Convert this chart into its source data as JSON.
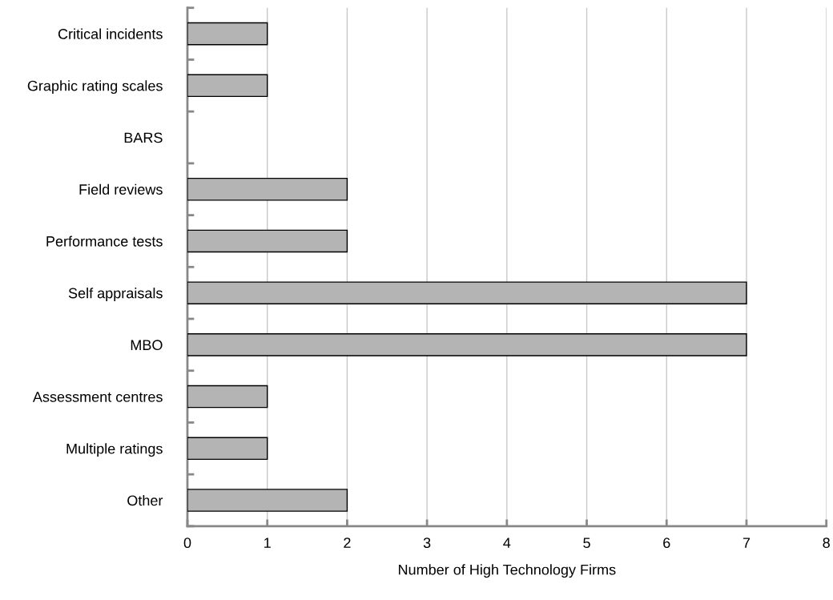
{
  "chart_data": {
    "type": "bar",
    "orientation": "horizontal",
    "xlabel": "Number of High Technology Firms",
    "categories": [
      "Critical incidents",
      "Graphic rating scales",
      "BARS",
      "Field reviews",
      "Performance tests",
      "Self appraisals",
      "MBO",
      "Assessment centres",
      "Multiple ratings",
      "Other"
    ],
    "values": [
      1,
      1,
      0,
      2,
      2,
      7,
      7,
      1,
      1,
      2
    ],
    "color": "#b4b4b4",
    "xlim": [
      0,
      8
    ],
    "xticks": [
      0,
      1,
      2,
      3,
      4,
      5,
      6,
      7,
      8
    ],
    "grid": "x",
    "legend": false
  }
}
